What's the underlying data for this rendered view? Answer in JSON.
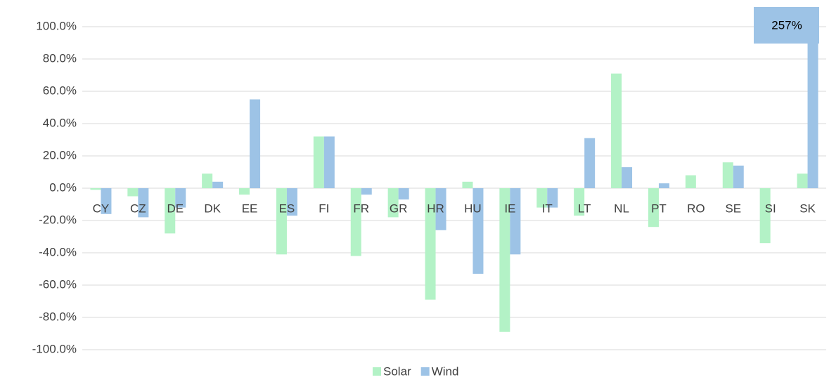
{
  "chart_data": {
    "type": "bar",
    "categories": [
      "CY",
      "CZ",
      "DE",
      "DK",
      "EE",
      "ES",
      "FI",
      "FR",
      "GR",
      "HR",
      "HU",
      "IE",
      "IT",
      "LT",
      "NL",
      "PT",
      "RO",
      "SE",
      "SI",
      "SK"
    ],
    "series": [
      {
        "name": "Solar",
        "color": "#b3f2c6",
        "values": [
          -1,
          -5,
          -28,
          9,
          -4,
          -41,
          32,
          -42,
          -18,
          -69,
          4,
          -89,
          -12,
          -17,
          71,
          -24,
          8,
          16,
          -34,
          9
        ]
      },
      {
        "name": "Wind",
        "color": "#9dc3e6",
        "values": [
          -16,
          -18,
          -12,
          4,
          55,
          -17,
          32,
          -4,
          -7,
          -26,
          -53,
          -41,
          -12,
          31,
          13,
          3,
          0,
          14,
          0,
          257
        ],
        "value_labels": [
          null,
          null,
          null,
          null,
          null,
          null,
          null,
          null,
          null,
          null,
          null,
          null,
          null,
          null,
          null,
          null,
          null,
          null,
          null,
          "257%"
        ]
      }
    ],
    "ylim": [
      -100,
      100
    ],
    "yticks": [
      {
        "value": -100,
        "label": "-100.0%"
      },
      {
        "value": -80,
        "label": "-80.0%"
      },
      {
        "value": -60,
        "label": "-60.0%"
      },
      {
        "value": -40,
        "label": "-40.0%"
      },
      {
        "value": -20,
        "label": "-20.0%"
      },
      {
        "value": 0,
        "label": "0.0%"
      },
      {
        "value": 20,
        "label": "20.0%"
      },
      {
        "value": 40,
        "label": "40.0%"
      },
      {
        "value": 60,
        "label": "60.0%"
      },
      {
        "value": 80,
        "label": "80.0%"
      },
      {
        "value": 100,
        "label": "100.0%"
      }
    ],
    "grid": true,
    "legend": "bottom"
  }
}
